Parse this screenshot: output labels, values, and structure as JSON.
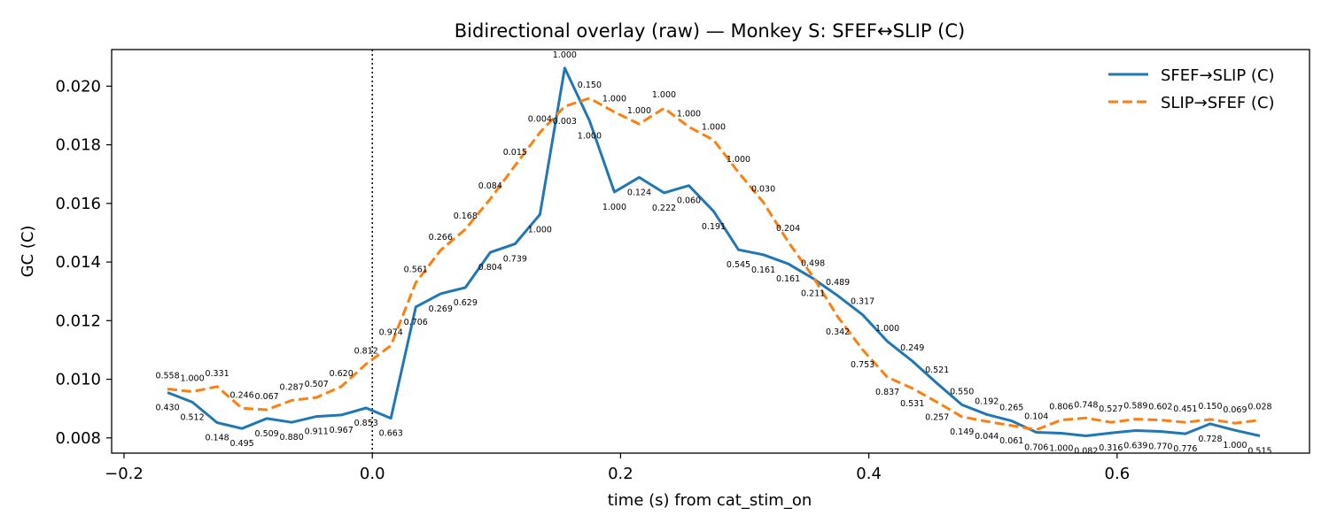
{
  "chart_data": {
    "type": "line",
    "title": "Bidirectional overlay (raw) — Monkey S: SFEF↔SLIP (C)",
    "xlabel": "time (s) from cat_stim_on",
    "ylabel": "GC (C)",
    "xlim": [
      -0.21,
      0.755
    ],
    "ylim": [
      0.00748,
      0.02125
    ],
    "x_ticks": [
      -0.2,
      0.0,
      0.2,
      0.4,
      0.6
    ],
    "x_tick_labels": [
      "−0.2",
      "0.0",
      "0.2",
      "0.4",
      "0.6"
    ],
    "y_ticks": [
      0.008,
      0.01,
      0.012,
      0.014,
      0.016,
      0.018,
      0.02
    ],
    "y_tick_labels": [
      "0.008",
      "0.010",
      "0.012",
      "0.014",
      "0.016",
      "0.018",
      "0.020"
    ],
    "vline_x": 0.0,
    "legend_position": "upper right",
    "x": [
      -0.165,
      -0.145,
      -0.125,
      -0.105,
      -0.085,
      -0.065,
      -0.045,
      -0.025,
      -0.005,
      0.015,
      0.035,
      0.055,
      0.075,
      0.095,
      0.115,
      0.135,
      0.155,
      0.175,
      0.195,
      0.215,
      0.235,
      0.255,
      0.275,
      0.295,
      0.315,
      0.335,
      0.355,
      0.375,
      0.395,
      0.415,
      0.435,
      0.455,
      0.475,
      0.495,
      0.515,
      0.535,
      0.555,
      0.575,
      0.595,
      0.615,
      0.635,
      0.655,
      0.675,
      0.695,
      0.715
    ],
    "series": [
      {
        "name": "SFEF→SLIP (C)",
        "color": "#1f77b4",
        "dash": "solid",
        "values": [
          0.00955,
          0.00922,
          0.00852,
          0.00832,
          0.00866,
          0.00853,
          0.00873,
          0.00878,
          0.00902,
          0.00867,
          0.01247,
          0.01292,
          0.01313,
          0.01433,
          0.01462,
          0.01562,
          0.02062,
          0.01882,
          0.01639,
          0.01689,
          0.01636,
          0.01661,
          0.01573,
          0.01442,
          0.01425,
          0.01394,
          0.01344,
          0.01285,
          0.0122,
          0.01129,
          0.01062,
          0.00986,
          0.00913,
          0.0088,
          0.00858,
          0.00819,
          0.00816,
          0.00807,
          0.00817,
          0.00825,
          0.00822,
          0.00814,
          0.00848,
          0.00826,
          0.00807
        ],
        "point_labels": [
          "0.430",
          "0.512",
          "0.148",
          "0.495",
          "0.509",
          "0.880",
          "0.911",
          "0.967",
          "0.853",
          "0.663",
          "0.706",
          "0.269",
          "0.629",
          "0.804",
          "0.739",
          "1.000",
          "1.000",
          "1.000",
          "1.000",
          "0.124",
          "0.222",
          "0.060",
          "0.191",
          "0.545",
          "0.161",
          "0.161",
          "0.211",
          "0.489",
          "0.317",
          "1.000",
          "0.249",
          "0.521",
          "0.550",
          "0.192",
          "0.265",
          "0.706",
          "1.000",
          "0.082",
          "0.316",
          "0.639",
          "0.770",
          "0.776",
          "0.728",
          "1.000",
          "0.515"
        ]
      },
      {
        "name": "SLIP→SFEF (C)",
        "color": "#ff7f0e",
        "dash": "dashed",
        "values": [
          0.00967,
          0.00958,
          0.00975,
          0.00901,
          0.00896,
          0.00928,
          0.00938,
          0.00975,
          0.01052,
          0.01115,
          0.0133,
          0.0144,
          0.01512,
          0.01615,
          0.01729,
          0.01842,
          0.01931,
          0.01959,
          0.01912,
          0.01871,
          0.01925,
          0.01861,
          0.01816,
          0.01706,
          0.01604,
          0.01469,
          0.0135,
          0.01213,
          0.01101,
          0.01007,
          0.00969,
          0.00922,
          0.00872,
          0.00856,
          0.00842,
          0.00828,
          0.00861,
          0.00868,
          0.00853,
          0.00864,
          0.00861,
          0.00853,
          0.00863,
          0.0085,
          0.00861
        ],
        "point_labels": [
          "0.558",
          "1.000",
          "0.331",
          "0.246",
          "0.067",
          "0.287",
          "0.507",
          "0.620",
          "0.812",
          "0.974",
          "0.561",
          "0.266",
          "0.168",
          "0.084",
          "0.015",
          "0.004",
          "0.003",
          "0.150",
          "1.000",
          "1.000",
          "1.000",
          "1.000",
          "1.000",
          "1.000",
          "0.030",
          "0.204",
          "0.498",
          "0.342",
          "0.753",
          "0.837",
          "0.531",
          "0.257",
          "0.149",
          "0.044",
          "0.061",
          "0.104",
          "0.806",
          "0.748",
          "0.527",
          "0.589",
          "0.602",
          "0.451",
          "0.150",
          "0.069",
          "0.028"
        ]
      }
    ]
  }
}
